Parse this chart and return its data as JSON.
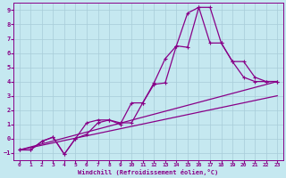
{
  "xlabel": "Windchill (Refroidissement éolien,°C)",
  "xlim": [
    -0.5,
    23.5
  ],
  "ylim": [
    -1.5,
    9.5
  ],
  "xticks": [
    0,
    1,
    2,
    3,
    4,
    5,
    6,
    7,
    8,
    9,
    10,
    11,
    12,
    13,
    14,
    15,
    16,
    17,
    18,
    19,
    20,
    21,
    22,
    23
  ],
  "yticks": [
    -1,
    0,
    1,
    2,
    3,
    4,
    5,
    6,
    7,
    8,
    9
  ],
  "bg_color": "#c5e8f0",
  "line_color": "#880088",
  "grid_color": "#a8ccd8",
  "line1_x": [
    0,
    1,
    2,
    3,
    4,
    5,
    6,
    7,
    8,
    9,
    10,
    11,
    12,
    13,
    14,
    15,
    16,
    17,
    18,
    19,
    20,
    21,
    22,
    23
  ],
  "line1_y": [
    -0.8,
    -0.8,
    -0.2,
    0.1,
    -1.1,
    0.0,
    0.3,
    1.1,
    1.3,
    1.1,
    1.1,
    2.5,
    3.9,
    5.6,
    6.5,
    8.8,
    9.2,
    9.2,
    6.7,
    5.4,
    4.3,
    4.0,
    4.0,
    4.0
  ],
  "line2_x": [
    0,
    1,
    2,
    3,
    4,
    5,
    6,
    7,
    8,
    9,
    10,
    11,
    12,
    13,
    14,
    15,
    16,
    17,
    18,
    19,
    20,
    21,
    22,
    23
  ],
  "line2_y": [
    -0.8,
    -0.8,
    -0.2,
    0.1,
    -1.1,
    0.0,
    1.1,
    1.3,
    1.3,
    1.0,
    2.5,
    2.5,
    3.8,
    3.9,
    6.5,
    6.4,
    9.2,
    6.7,
    6.7,
    5.4,
    5.4,
    4.3,
    4.0,
    4.0
  ],
  "line3_x": [
    0,
    23
  ],
  "line3_y": [
    -0.8,
    3.0
  ],
  "line4_x": [
    0,
    23
  ],
  "line4_y": [
    -0.8,
    4.0
  ]
}
